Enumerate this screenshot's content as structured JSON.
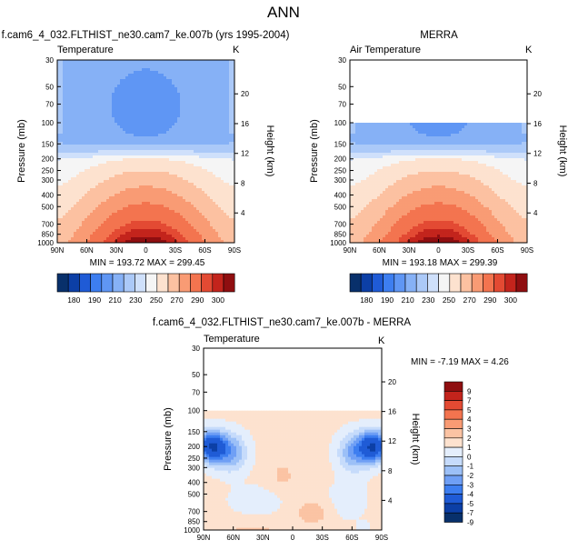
{
  "figure": {
    "title": "ANN"
  },
  "palettes": {
    "abs": [
      "#08306b",
      "#0c3fa6",
      "#1f5bd6",
      "#3d7ef0",
      "#5f96f4",
      "#86b1f6",
      "#abc9f8",
      "#cfe0fb",
      "#f5f5f5",
      "#fde2cf",
      "#fcc1a1",
      "#f99b74",
      "#f3744f",
      "#e34a33",
      "#c3241c",
      "#8f0e10"
    ],
    "diff": [
      "#08306b",
      "#0c3fa6",
      "#1f5bd6",
      "#3d7ef0",
      "#6f9ff5",
      "#9cc0f7",
      "#c6dbfb",
      "#e4eefc",
      "#fde2cf",
      "#fbc3a3",
      "#f99b74",
      "#f3744f",
      "#e34a33",
      "#c3241c",
      "#8f0e10"
    ]
  },
  "chart_data": [
    {
      "type": "heatmap",
      "title": "f.cam6_4_032.FLTHIST_ne30.cam7_ke.007b (yrs 1995-2004)",
      "subtitle": "Temperature",
      "units": "K",
      "ylabel": "Pressure (mb)",
      "ylabel_right": "Height (km)",
      "x_ticks": [
        "90N",
        "60N",
        "30N",
        "0",
        "30S",
        "60S",
        "90S"
      ],
      "x_range": [
        90,
        -90
      ],
      "y_ticks": [
        "30",
        "50",
        "70",
        "100",
        "150",
        "200",
        "250",
        "300",
        "400",
        "500",
        "700",
        "850",
        "1000"
      ],
      "y_range_mb": [
        30,
        1000
      ],
      "y_log": true,
      "height_ticks_km": [
        "4",
        "8",
        "12",
        "16",
        "20"
      ],
      "stats": "MIN = 193.72   MAX = 299.45",
      "min": 193.72,
      "max": 299.45,
      "data_top_mb": 30
    },
    {
      "type": "heatmap",
      "title": "MERRA",
      "subtitle": "Air Temperature",
      "units": "K",
      "ylabel": "Pressure (mb)",
      "ylabel_right": "Height (km)",
      "x_ticks": [
        "90N",
        "60N",
        "30N",
        "0",
        "30S",
        "60S",
        "90S"
      ],
      "x_range": [
        90,
        -90
      ],
      "y_ticks": [
        "30",
        "50",
        "70",
        "100",
        "150",
        "200",
        "250",
        "300",
        "400",
        "500",
        "700",
        "850",
        "1000"
      ],
      "y_range_mb": [
        30,
        1000
      ],
      "y_log": true,
      "height_ticks_km": [
        "4",
        "8",
        "12",
        "16",
        "20"
      ],
      "stats": "MIN = 193.18   MAX = 299.39",
      "min": 193.18,
      "max": 299.39,
      "data_top_mb": 100
    },
    {
      "type": "heatmap",
      "title": "f.cam6_4_032.FLTHIST_ne30.cam7_ke.007b - MERRA",
      "subtitle": "Temperature",
      "units": "K",
      "ylabel": "Pressure (mb)",
      "ylabel_right": "Height (km)",
      "x_ticks": [
        "90N",
        "60N",
        "30N",
        "0",
        "30S",
        "60S",
        "90S"
      ],
      "x_range": [
        90,
        -90
      ],
      "y_ticks": [
        "30",
        "50",
        "70",
        "100",
        "150",
        "200",
        "250",
        "300",
        "400",
        "500",
        "700",
        "850",
        "1000"
      ],
      "y_range_mb": [
        30,
        1000
      ],
      "y_log": true,
      "height_ticks_km": [
        "4",
        "8",
        "12",
        "16",
        "20"
      ],
      "stats": "MIN =  -7.19  MAX =   4.26",
      "min": -7.19,
      "max": 4.26,
      "data_top_mb": 100
    }
  ],
  "colorbars": [
    {
      "orientation": "horizontal",
      "labels": [
        "180",
        "190",
        "210",
        "230",
        "250",
        "270",
        "290",
        "300"
      ]
    },
    {
      "orientation": "horizontal",
      "labels": [
        "180",
        "190",
        "210",
        "230",
        "250",
        "270",
        "290",
        "300"
      ]
    },
    {
      "orientation": "vertical",
      "labels": [
        "9",
        "7",
        "5",
        "4",
        "3",
        "2",
        "1",
        "0",
        "-1",
        "-2",
        "-3",
        "-4",
        "-5",
        "-7",
        "-9"
      ]
    }
  ]
}
